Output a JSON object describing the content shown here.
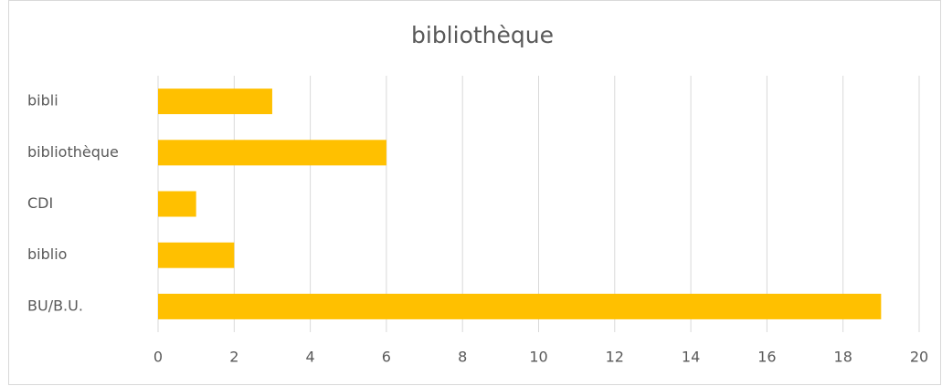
{
  "chart_data": {
    "type": "bar",
    "orientation": "horizontal",
    "title": "bibliothèque",
    "categories": [
      "bibli",
      "bibliothèque",
      "CDI",
      "biblio",
      "BU/B.U."
    ],
    "values": [
      3,
      6,
      1,
      2,
      19
    ],
    "color": "#ffc000",
    "xlim": [
      0,
      20
    ],
    "xticks": [
      0,
      2,
      4,
      6,
      8,
      10,
      12,
      14,
      16,
      18,
      20
    ],
    "grid": true
  }
}
